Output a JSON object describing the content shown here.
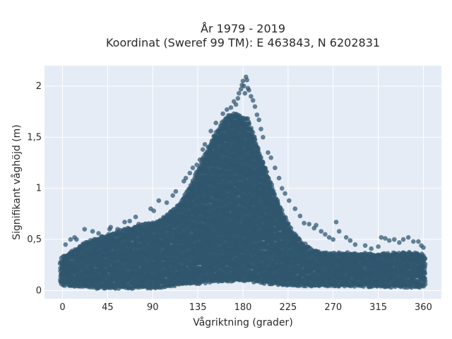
{
  "chart_data": {
    "type": "scatter",
    "title_lines": [
      "År 1979 - 2019",
      "Koordinat (Sweref 99 TM): E 463843, N 6202831"
    ],
    "xlabel": "Vågriktning (grader)",
    "ylabel": "Signifikant våghöjd (m)",
    "xlim": [
      -18,
      378
    ],
    "ylim": [
      -0.08,
      2.2
    ],
    "x_ticks": [
      0,
      45,
      90,
      135,
      180,
      225,
      270,
      315,
      360
    ],
    "x_tick_labels": [
      "0",
      "45",
      "90",
      "135",
      "180",
      "225",
      "270",
      "315",
      "360"
    ],
    "y_ticks": [
      0,
      0.5,
      1,
      1.5,
      2
    ],
    "y_tick_labels": [
      "0",
      "0,5",
      "1",
      "1,5",
      "2"
    ],
    "grid": true,
    "legend": "none",
    "plot_background": "#e5ecf6",
    "marker_color": "#2f566d",
    "envelope": {
      "x": [
        -2,
        0,
        10,
        20,
        30,
        45,
        60,
        75,
        90,
        100,
        110,
        120,
        130,
        140,
        150,
        160,
        165,
        170,
        175,
        180,
        185,
        190,
        195,
        200,
        210,
        220,
        230,
        240,
        250,
        260,
        270,
        280,
        290,
        300,
        315,
        330,
        345,
        360,
        362
      ],
      "lower": [
        0.06,
        0.05,
        0.04,
        0.03,
        0.02,
        0.02,
        0.02,
        0.02,
        0.02,
        0.03,
        0.04,
        0.05,
        0.06,
        0.07,
        0.08,
        0.09,
        0.09,
        0.09,
        0.09,
        0.09,
        0.09,
        0.08,
        0.08,
        0.07,
        0.06,
        0.05,
        0.05,
        0.04,
        0.04,
        0.04,
        0.04,
        0.04,
        0.04,
        0.04,
        0.03,
        0.03,
        0.03,
        0.03,
        0.04
      ],
      "upper": [
        0.3,
        0.34,
        0.4,
        0.46,
        0.5,
        0.55,
        0.6,
        0.64,
        0.67,
        0.72,
        0.79,
        0.9,
        1.08,
        1.3,
        1.5,
        1.66,
        1.71,
        1.74,
        1.73,
        1.7,
        1.68,
        1.55,
        1.4,
        1.27,
        1.0,
        0.76,
        0.58,
        0.47,
        0.4,
        0.38,
        0.37,
        0.38,
        0.37,
        0.37,
        0.36,
        0.37,
        0.38,
        0.36,
        0.33
      ]
    },
    "outliers": [
      [
        3,
        0.45
      ],
      [
        8,
        0.5
      ],
      [
        12,
        0.52
      ],
      [
        14,
        0.5
      ],
      [
        22,
        0.6
      ],
      [
        30,
        0.58
      ],
      [
        36,
        0.56
      ],
      [
        47,
        0.6
      ],
      [
        48,
        0.62
      ],
      [
        55,
        0.6
      ],
      [
        62,
        0.67
      ],
      [
        67,
        0.68
      ],
      [
        73,
        0.72
      ],
      [
        76,
        0.65
      ],
      [
        88,
        0.8
      ],
      [
        91,
        0.78
      ],
      [
        96,
        0.88
      ],
      [
        104,
        0.86
      ],
      [
        110,
        0.93
      ],
      [
        113,
        0.97
      ],
      [
        121,
        1.07
      ],
      [
        123,
        1.1
      ],
      [
        127,
        1.15
      ],
      [
        130,
        1.2
      ],
      [
        134,
        1.23
      ],
      [
        137,
        1.28
      ],
      [
        140,
        1.38
      ],
      [
        142,
        1.43
      ],
      [
        148,
        1.56
      ],
      [
        153,
        1.64
      ],
      [
        160,
        1.73
      ],
      [
        164,
        1.77
      ],
      [
        168,
        1.79
      ],
      [
        171,
        1.85
      ],
      [
        173,
        1.82
      ],
      [
        175,
        1.88
      ],
      [
        176,
        1.93
      ],
      [
        178,
        1.97
      ],
      [
        179,
        2.01
      ],
      [
        180,
        2.05
      ],
      [
        181,
        2.0
      ],
      [
        182,
        1.93
      ],
      [
        183,
        2.09
      ],
      [
        184,
        2.06
      ],
      [
        185,
        1.98
      ],
      [
        186,
        1.96
      ],
      [
        188,
        1.9
      ],
      [
        190,
        1.86
      ],
      [
        192,
        1.8
      ],
      [
        194,
        1.72
      ],
      [
        196,
        1.67
      ],
      [
        198,
        1.58
      ],
      [
        200,
        1.5
      ],
      [
        205,
        1.35
      ],
      [
        208,
        1.3
      ],
      [
        212,
        1.2
      ],
      [
        216,
        1.1
      ],
      [
        219,
        1.0
      ],
      [
        222,
        0.95
      ],
      [
        226,
        0.88
      ],
      [
        232,
        0.8
      ],
      [
        237,
        0.73
      ],
      [
        241,
        0.66
      ],
      [
        246,
        0.65
      ],
      [
        251,
        0.61
      ],
      [
        253,
        0.64
      ],
      [
        258,
        0.58
      ],
      [
        262,
        0.55
      ],
      [
        266,
        0.52
      ],
      [
        270,
        0.5
      ],
      [
        273,
        0.67
      ],
      [
        276,
        0.58
      ],
      [
        283,
        0.52
      ],
      [
        287,
        0.49
      ],
      [
        292,
        0.45
      ],
      [
        302,
        0.44
      ],
      [
        308,
        0.41
      ],
      [
        315,
        0.43
      ],
      [
        318,
        0.52
      ],
      [
        322,
        0.51
      ],
      [
        326,
        0.49
      ],
      [
        331,
        0.5
      ],
      [
        336,
        0.47
      ],
      [
        340,
        0.5
      ],
      [
        345,
        0.52
      ],
      [
        350,
        0.48
      ],
      [
        355,
        0.48
      ],
      [
        358,
        0.44
      ],
      [
        360,
        0.42
      ]
    ]
  }
}
